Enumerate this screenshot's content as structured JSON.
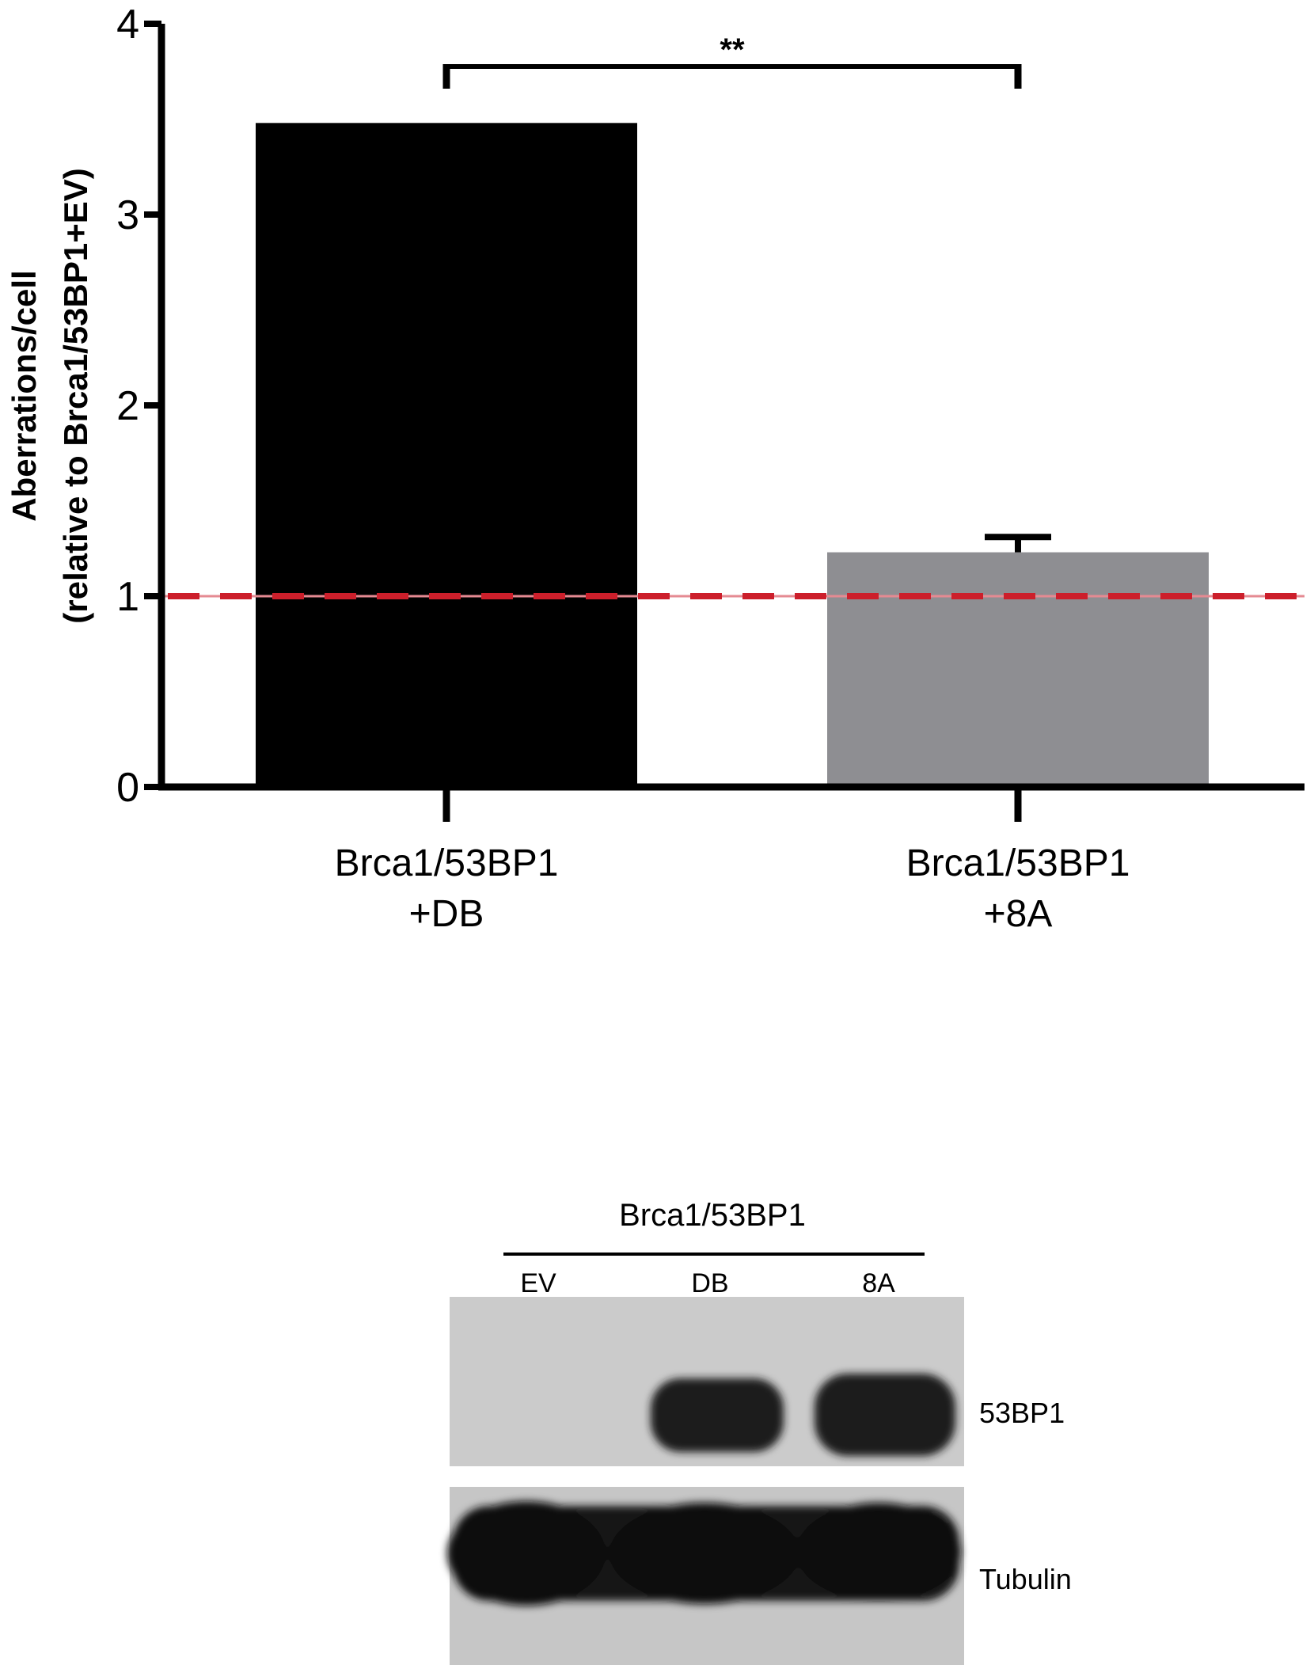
{
  "chart_data": {
    "type": "bar",
    "categories": [
      [
        "Brca1/53BP1",
        "+DB"
      ],
      [
        "Brca1/53BP1",
        "+8A"
      ]
    ],
    "values": [
      3.48,
      1.23
    ],
    "error_upper": [
      null,
      1.31
    ],
    "ylabel": [
      "Aberrations/cell",
      "(relative to Brca1/53BP1+EV)"
    ],
    "ylim": [
      0,
      4
    ],
    "yticks": [
      0,
      1,
      2,
      3,
      4
    ],
    "reference_line": {
      "y": 1,
      "style": "dashed",
      "color": "#cc1f2b"
    },
    "significance": {
      "label": "**",
      "between": [
        0,
        1
      ]
    },
    "bar_colors": [
      "#000000",
      "#8e8e92"
    ],
    "grid": false
  },
  "blot": {
    "group_label": "Brca1/53BP1",
    "lanes": [
      "EV",
      "DB",
      "8A"
    ],
    "panels": [
      {
        "label": "53BP1",
        "band_lanes": [
          "DB",
          "8A"
        ]
      },
      {
        "label": "Tubulin",
        "band_lanes": [
          "EV",
          "DB",
          "8A"
        ]
      }
    ]
  }
}
